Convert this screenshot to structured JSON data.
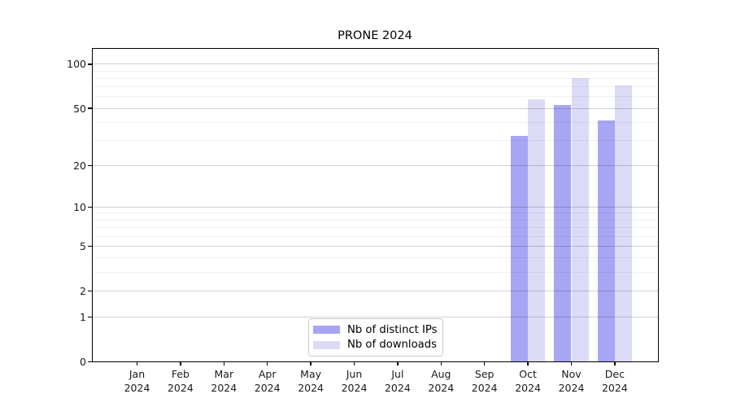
{
  "chart_data": {
    "type": "bar",
    "title": "PRONE 2024",
    "x_categories": [
      "Jan",
      "Feb",
      "Mar",
      "Apr",
      "May",
      "Jun",
      "Jul",
      "Aug",
      "Sep",
      "Oct",
      "Nov",
      "Dec"
    ],
    "x_year": "2024",
    "series": [
      {
        "key": "distinct-ips",
        "name": "Nb of distinct IPs",
        "color": "#a6a6f5",
        "values": [
          0,
          0,
          0,
          0,
          0,
          0,
          0,
          0,
          0,
          32,
          53,
          41
        ]
      },
      {
        "key": "downloads",
        "name": "Nb of downloads",
        "color": "#dbdbf8",
        "values": [
          0,
          0,
          0,
          0,
          0,
          0,
          0,
          0,
          0,
          58,
          80,
          72
        ]
      }
    ],
    "yscale": "log1p",
    "y_major_ticks": [
      0,
      1,
      2,
      5,
      10,
      20,
      50,
      100
    ],
    "y_minor_ticks": [
      3,
      4,
      6,
      7,
      8,
      9,
      30,
      40,
      60,
      70,
      80,
      90
    ],
    "ylim": [
      0,
      128
    ],
    "xlabel": "",
    "ylabel": "",
    "grid": true,
    "grid_over_bars": true,
    "legend_position": "lower center"
  }
}
